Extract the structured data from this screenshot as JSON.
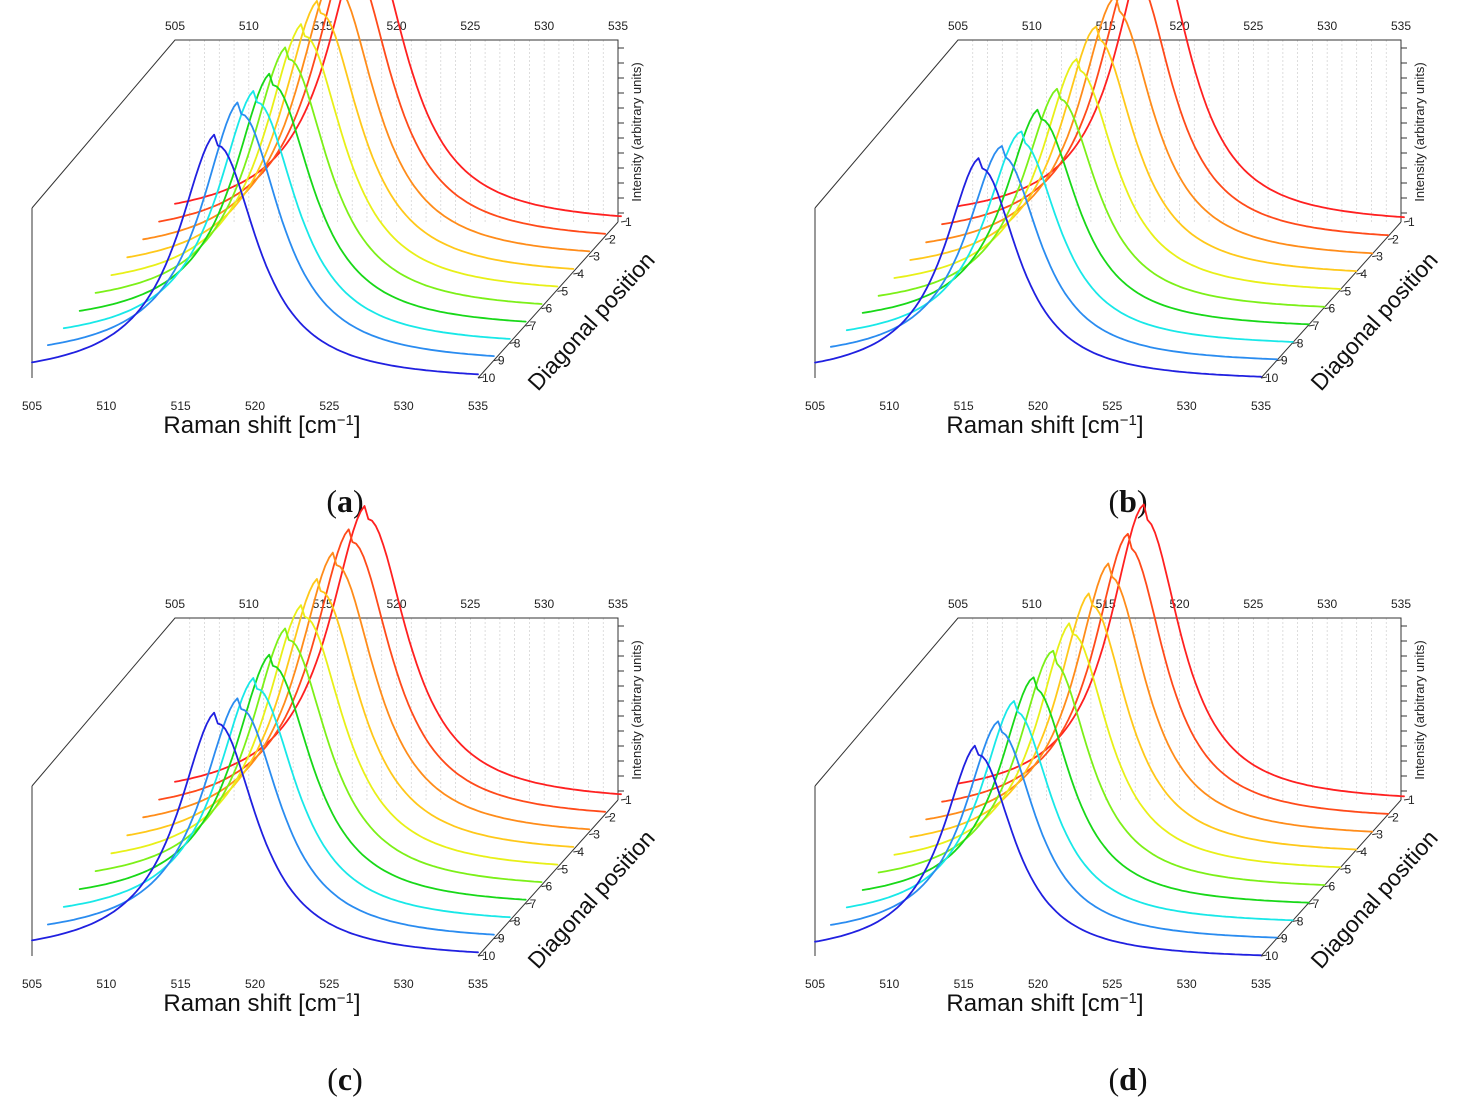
{
  "figure": {
    "panel_letters": [
      "a",
      "b",
      "c",
      "d"
    ],
    "x_axis_title": "Raman shift [cm",
    "x_axis_sup": "−1",
    "x_axis_close": "]",
    "z_axis_title": "Diagonal position",
    "y_axis_title": "Intensity (arbitrary units)",
    "x_ticks": [
      "505",
      "510",
      "515",
      "520",
      "525",
      "530",
      "535"
    ],
    "z_ticks": [
      "1",
      "2",
      "3",
      "4",
      "5",
      "6",
      "7",
      "8",
      "9",
      "10"
    ],
    "series_colors": [
      "#ff2020",
      "#ff4a1a",
      "#ff8c1a",
      "#ffc81a",
      "#e8f018",
      "#7cf018",
      "#18d818",
      "#18e8e8",
      "#2a8cf0",
      "#2020e0"
    ]
  },
  "chart_data": [
    {
      "panel": "a",
      "type": "line",
      "projection": "3d-waterfall",
      "xlabel": "Raman shift [cm−1]",
      "ylabel": "Intensity (arbitrary units)",
      "zlabel": "Diagonal position",
      "xlim": [
        505,
        535
      ],
      "ylim": [
        0,
        1
      ],
      "z_positions": [
        1,
        2,
        3,
        4,
        5,
        6,
        7,
        8,
        9,
        10
      ],
      "series": [
        {
          "name": "1",
          "peak_center": 518.0,
          "peak_height": 1.0,
          "hwhm": 3.2
        },
        {
          "name": "2",
          "peak_center": 518.0,
          "peak_height": 0.98,
          "hwhm": 3.2
        },
        {
          "name": "3",
          "peak_center": 518.0,
          "peak_height": 0.96,
          "hwhm": 3.2
        },
        {
          "name": "4",
          "peak_center": 518.0,
          "peak_height": 0.93,
          "hwhm": 3.2
        },
        {
          "name": "5",
          "peak_center": 518.0,
          "peak_height": 0.91,
          "hwhm": 3.2
        },
        {
          "name": "6",
          "peak_center": 518.0,
          "peak_height": 0.89,
          "hwhm": 3.2
        },
        {
          "name": "7",
          "peak_center": 518.0,
          "peak_height": 0.86,
          "hwhm": 3.2
        },
        {
          "name": "8",
          "peak_center": 518.0,
          "peak_height": 0.86,
          "hwhm": 3.2
        },
        {
          "name": "9",
          "peak_center": 518.0,
          "peak_height": 0.88,
          "hwhm": 3.2
        },
        {
          "name": "10",
          "peak_center": 517.5,
          "peak_height": 0.83,
          "hwhm": 3.2
        }
      ]
    },
    {
      "panel": "b",
      "type": "line",
      "projection": "3d-waterfall",
      "xlabel": "Raman shift [cm−1]",
      "ylabel": "Intensity (arbitrary units)",
      "zlabel": "Diagonal position",
      "xlim": [
        505,
        535
      ],
      "ylim": [
        0,
        1
      ],
      "z_positions": [
        1,
        2,
        3,
        4,
        5,
        6,
        7,
        8,
        9,
        10
      ],
      "series": [
        {
          "name": "1",
          "peak_center": 518.2,
          "peak_height": 1.0,
          "hwhm": 3.0
        },
        {
          "name": "2",
          "peak_center": 518.0,
          "peak_height": 0.94,
          "hwhm": 3.0
        },
        {
          "name": "3",
          "peak_center": 517.8,
          "peak_height": 0.88,
          "hwhm": 3.0
        },
        {
          "name": "4",
          "peak_center": 517.6,
          "peak_height": 0.84,
          "hwhm": 3.0
        },
        {
          "name": "5",
          "peak_center": 517.4,
          "peak_height": 0.79,
          "hwhm": 3.0
        },
        {
          "name": "6",
          "peak_center": 517.2,
          "peak_height": 0.75,
          "hwhm": 3.0
        },
        {
          "name": "7",
          "peak_center": 517.0,
          "peak_height": 0.74,
          "hwhm": 3.0
        },
        {
          "name": "8",
          "peak_center": 516.8,
          "peak_height": 0.72,
          "hwhm": 3.0
        },
        {
          "name": "9",
          "peak_center": 516.6,
          "peak_height": 0.73,
          "hwhm": 3.0
        },
        {
          "name": "10",
          "peak_center": 516.2,
          "peak_height": 0.75,
          "hwhm": 3.0
        }
      ]
    },
    {
      "panel": "c",
      "type": "line",
      "projection": "3d-waterfall",
      "xlabel": "Raman shift [cm−1]",
      "ylabel": "Intensity (arbitrary units)",
      "zlabel": "Diagonal position",
      "xlim": [
        505,
        535
      ],
      "ylim": [
        0,
        1
      ],
      "z_positions": [
        1,
        2,
        3,
        4,
        5,
        6,
        7,
        8,
        9,
        10
      ],
      "series": [
        {
          "name": "1",
          "peak_center": 518.0,
          "peak_height": 1.0,
          "hwhm": 3.2
        },
        {
          "name": "2",
          "peak_center": 518.0,
          "peak_height": 0.98,
          "hwhm": 3.2
        },
        {
          "name": "3",
          "peak_center": 518.0,
          "peak_height": 0.96,
          "hwhm": 3.2
        },
        {
          "name": "4",
          "peak_center": 518.0,
          "peak_height": 0.93,
          "hwhm": 3.2
        },
        {
          "name": "5",
          "peak_center": 518.0,
          "peak_height": 0.9,
          "hwhm": 3.2
        },
        {
          "name": "6",
          "peak_center": 518.0,
          "peak_height": 0.88,
          "hwhm": 3.2
        },
        {
          "name": "7",
          "peak_center": 518.0,
          "peak_height": 0.85,
          "hwhm": 3.2
        },
        {
          "name": "8",
          "peak_center": 518.0,
          "peak_height": 0.83,
          "hwhm": 3.2
        },
        {
          "name": "9",
          "peak_center": 518.0,
          "peak_height": 0.82,
          "hwhm": 3.2
        },
        {
          "name": "10",
          "peak_center": 517.5,
          "peak_height": 0.83,
          "hwhm": 3.2
        }
      ]
    },
    {
      "panel": "d",
      "type": "line",
      "projection": "3d-waterfall",
      "xlabel": "Raman shift [cm−1]",
      "ylabel": "Intensity (arbitrary units)",
      "zlabel": "Diagonal position",
      "xlim": [
        505,
        535
      ],
      "ylim": [
        0,
        1
      ],
      "z_positions": [
        1,
        2,
        3,
        4,
        5,
        6,
        7,
        8,
        9,
        10
      ],
      "series": [
        {
          "name": "1",
          "peak_center": 517.6,
          "peak_height": 1.0,
          "hwhm": 2.9
        },
        {
          "name": "2",
          "peak_center": 517.6,
          "peak_height": 0.96,
          "hwhm": 2.9
        },
        {
          "name": "3",
          "peak_center": 517.4,
          "peak_height": 0.92,
          "hwhm": 2.9
        },
        {
          "name": "4",
          "peak_center": 517.2,
          "peak_height": 0.88,
          "hwhm": 2.9
        },
        {
          "name": "5",
          "peak_center": 517.0,
          "peak_height": 0.84,
          "hwhm": 2.9
        },
        {
          "name": "6",
          "peak_center": 516.8,
          "peak_height": 0.8,
          "hwhm": 2.9
        },
        {
          "name": "7",
          "peak_center": 516.6,
          "peak_height": 0.77,
          "hwhm": 2.9
        },
        {
          "name": "8",
          "peak_center": 516.4,
          "peak_height": 0.75,
          "hwhm": 2.9
        },
        {
          "name": "9",
          "peak_center": 516.4,
          "peak_height": 0.74,
          "hwhm": 2.9
        },
        {
          "name": "10",
          "peak_center": 516.0,
          "peak_height": 0.72,
          "hwhm": 2.9
        }
      ]
    }
  ]
}
